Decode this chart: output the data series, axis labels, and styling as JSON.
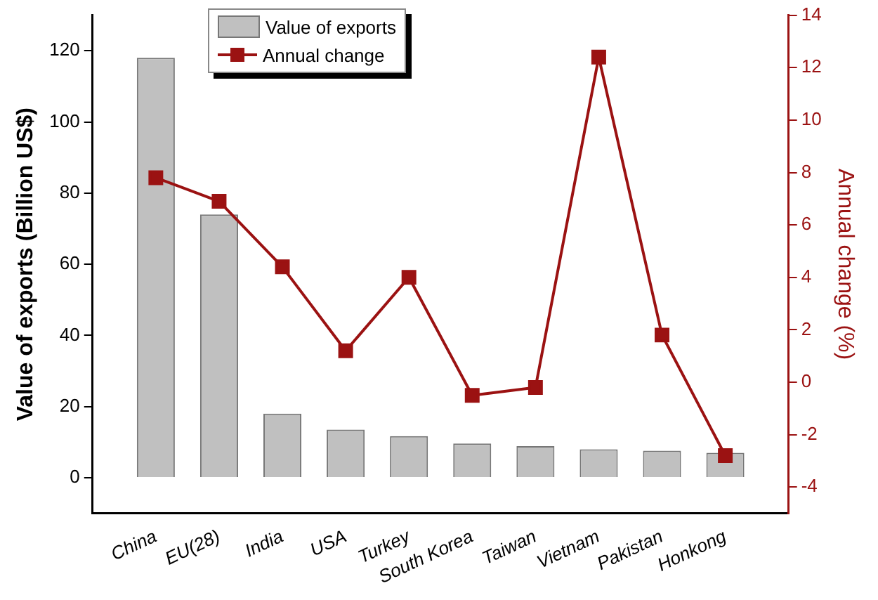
{
  "chart_data": {
    "type": "bar",
    "categories": [
      "China",
      "EU(28)",
      "India",
      "USA",
      "Turkey",
      "South Korea",
      "Taiwan",
      "Vietnam",
      "Pakistan",
      "Honkong"
    ],
    "series": [
      {
        "name": "Value of exports",
        "color": "#c0c0c0",
        "values": [
          118,
          74,
          18,
          13.5,
          11.7,
          9.6,
          8.9,
          8,
          7.6,
          7
        ]
      },
      {
        "name": "Annual change",
        "type": "line",
        "axis": "y2",
        "color": "#9b1212",
        "marker": "square",
        "values": [
          7.8,
          6.9,
          4.4,
          1.2,
          4,
          -0.5,
          -0.2,
          12.4,
          1.8,
          -2.8
        ]
      }
    ],
    "ylabel": "Value of exports (Billion US$)",
    "y2label": "Annual change (%)",
    "ylim": [
      -10,
      130
    ],
    "yticks": [
      0,
      20,
      40,
      60,
      80,
      100,
      120
    ],
    "y2lim": [
      -5,
      14
    ],
    "y2ticks": [
      -4,
      -2,
      0,
      2,
      4,
      6,
      8,
      10,
      12,
      14
    ],
    "legend": "top left",
    "grid": false
  }
}
